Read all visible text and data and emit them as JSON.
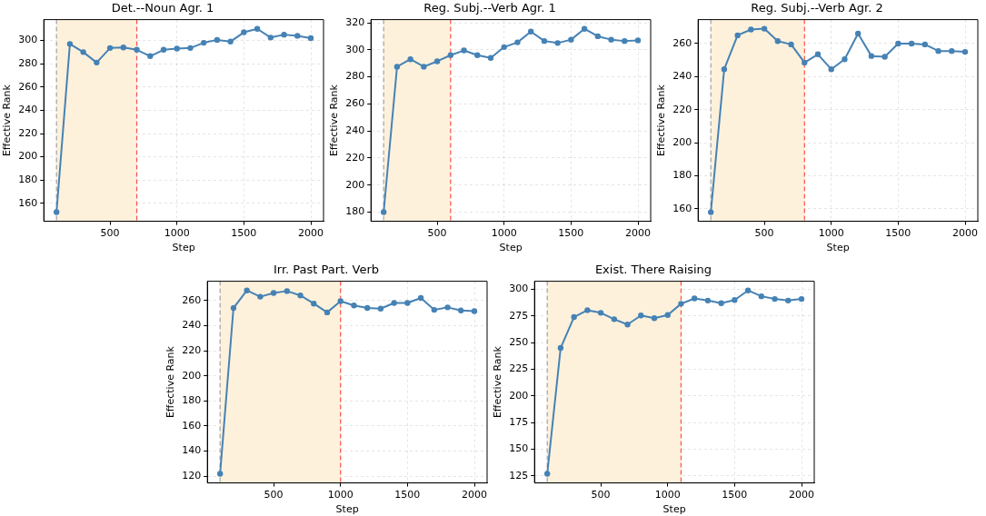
{
  "chart_data": [
    {
      "type": "line",
      "title": "Det.--Noun Agr. 1",
      "xlabel": "Step",
      "ylabel": "Effective Rank",
      "x": [
        100,
        200,
        300,
        400,
        500,
        600,
        700,
        800,
        900,
        1000,
        1100,
        1200,
        1300,
        1400,
        1500,
        1600,
        1700,
        1800,
        1900,
        2000
      ],
      "series": [
        {
          "color": "#4682b4",
          "values": [
            152.5,
            297,
            290,
            281,
            293.5,
            294,
            292,
            286.5,
            292,
            293,
            293.5,
            298,
            300.5,
            299,
            307,
            310,
            302.5,
            305,
            304,
            302
          ]
        }
      ],
      "xlim": [
        5,
        2095
      ],
      "xticks": [
        500,
        1000,
        1500,
        2000
      ],
      "ylim": [
        144.6,
        317.9
      ],
      "yticks": [
        160,
        180,
        200,
        220,
        240,
        260,
        280,
        300
      ],
      "bands": [
        {
          "axis": "x",
          "from": 100,
          "to": 700,
          "color": "#fdf1dc"
        }
      ],
      "ref_lines": [
        {
          "axis": "x",
          "value": 100,
          "color": "#a0a0a0",
          "line_style": "dashed"
        },
        {
          "axis": "x",
          "value": 700,
          "color": "#ff4d4d",
          "line_style": "dashed"
        }
      ],
      "grid": true,
      "marker": "circle",
      "line_style": "solid"
    },
    {
      "type": "line",
      "title": "Reg. Subj.--Verb Agr. 1",
      "xlabel": "Step",
      "ylabel": "Effective Rank",
      "x": [
        100,
        200,
        300,
        400,
        500,
        600,
        700,
        800,
        900,
        1000,
        1100,
        1200,
        1300,
        1400,
        1500,
        1600,
        1700,
        1800,
        1900,
        2000
      ],
      "series": [
        {
          "color": "#4682b4",
          "values": [
            180,
            287.5,
            293,
            287.5,
            291.5,
            296,
            299.5,
            296,
            294,
            302,
            305.5,
            313.5,
            306.5,
            305,
            307.5,
            315.5,
            310,
            307.5,
            306.5,
            307
          ]
        }
      ],
      "xlim": [
        5,
        2095
      ],
      "xticks": [
        500,
        1000,
        1500,
        2000
      ],
      "ylim": [
        173.2,
        322.3
      ],
      "yticks": [
        180,
        200,
        220,
        240,
        260,
        280,
        300,
        320
      ],
      "bands": [
        {
          "axis": "x",
          "from": 100,
          "to": 600,
          "color": "#fdf1dc"
        }
      ],
      "ref_lines": [
        {
          "axis": "x",
          "value": 100,
          "color": "#a0a0a0",
          "line_style": "dashed"
        },
        {
          "axis": "x",
          "value": 600,
          "color": "#ff4d4d",
          "line_style": "dashed"
        }
      ],
      "grid": true,
      "marker": "circle",
      "line_style": "solid"
    },
    {
      "type": "line",
      "title": "Reg. Subj.--Verb Agr. 2",
      "xlabel": "Step",
      "ylabel": "Effective Rank",
      "x": [
        100,
        200,
        300,
        400,
        500,
        600,
        700,
        800,
        900,
        1000,
        1100,
        1200,
        1300,
        1400,
        1500,
        1600,
        1700,
        1800,
        1900,
        2000
      ],
      "series": [
        {
          "color": "#4682b4",
          "values": [
            158,
            244.5,
            265,
            268.5,
            269,
            261.5,
            259.5,
            248.5,
            253.5,
            244.5,
            250.5,
            266,
            252.5,
            252,
            260,
            260,
            259.5,
            255.5,
            255.5,
            255
          ]
        }
      ],
      "xlim": [
        5,
        2095
      ],
      "xticks": [
        500,
        1000,
        1500,
        2000
      ],
      "ylim": [
        152.5,
        274.5
      ],
      "yticks": [
        160,
        180,
        200,
        220,
        240,
        260
      ],
      "bands": [
        {
          "axis": "x",
          "from": 100,
          "to": 800,
          "color": "#fdf1dc"
        }
      ],
      "ref_lines": [
        {
          "axis": "x",
          "value": 100,
          "color": "#a0a0a0",
          "line_style": "dashed"
        },
        {
          "axis": "x",
          "value": 800,
          "color": "#ff4d4d",
          "line_style": "dashed"
        }
      ],
      "grid": true,
      "marker": "circle",
      "line_style": "solid"
    },
    {
      "type": "line",
      "title": "Irr. Past Part. Verb",
      "xlabel": "Step",
      "ylabel": "Effective Rank",
      "x": [
        100,
        200,
        300,
        400,
        500,
        600,
        700,
        800,
        900,
        1000,
        1100,
        1200,
        1300,
        1400,
        1500,
        1600,
        1700,
        1800,
        1900,
        2000
      ],
      "series": [
        {
          "color": "#4682b4",
          "values": [
            122,
            254,
            268,
            263,
            266,
            267.5,
            264,
            257.5,
            250.5,
            259.5,
            256,
            254,
            253.5,
            258,
            258,
            262,
            252.5,
            254.5,
            252,
            251.5
          ]
        }
      ],
      "xlim": [
        5,
        2095
      ],
      "xticks": [
        500,
        1000,
        1500,
        2000
      ],
      "ylim": [
        114.7,
        275.3
      ],
      "yticks": [
        120,
        140,
        160,
        180,
        200,
        220,
        240,
        260
      ],
      "bands": [
        {
          "axis": "x",
          "from": 100,
          "to": 1000,
          "color": "#fdf1dc"
        }
      ],
      "ref_lines": [
        {
          "axis": "x",
          "value": 100,
          "color": "#a0a0a0",
          "line_style": "dashed"
        },
        {
          "axis": "x",
          "value": 1000,
          "color": "#ff4d4d",
          "line_style": "dashed"
        }
      ],
      "grid": true,
      "marker": "circle",
      "line_style": "solid"
    },
    {
      "type": "line",
      "title": "Exist. There Raising",
      "xlabel": "Step",
      "ylabel": "Effective Rank",
      "x": [
        100,
        200,
        300,
        400,
        500,
        600,
        700,
        800,
        900,
        1000,
        1100,
        1200,
        1300,
        1400,
        1500,
        1600,
        1700,
        1800,
        1900,
        2000
      ],
      "series": [
        {
          "color": "#4682b4",
          "values": [
            127,
            245,
            274,
            280.5,
            278,
            272,
            267,
            275.5,
            273,
            276,
            286.5,
            291.5,
            289.5,
            287,
            290,
            299,
            293.5,
            291,
            289.5,
            291
          ]
        }
      ],
      "xlim": [
        5,
        2095
      ],
      "xticks": [
        500,
        1000,
        1500,
        2000
      ],
      "ylim": [
        118.4,
        307.6
      ],
      "yticks": [
        125,
        150,
        175,
        200,
        225,
        250,
        275,
        300
      ],
      "bands": [
        {
          "axis": "x",
          "from": 100,
          "to": 1100,
          "color": "#fdf1dc"
        }
      ],
      "ref_lines": [
        {
          "axis": "x",
          "value": 100,
          "color": "#a0a0a0",
          "line_style": "dashed"
        },
        {
          "axis": "x",
          "value": 1100,
          "color": "#ff4d4d",
          "line_style": "dashed"
        }
      ],
      "grid": true,
      "marker": "circle",
      "line_style": "solid"
    }
  ]
}
